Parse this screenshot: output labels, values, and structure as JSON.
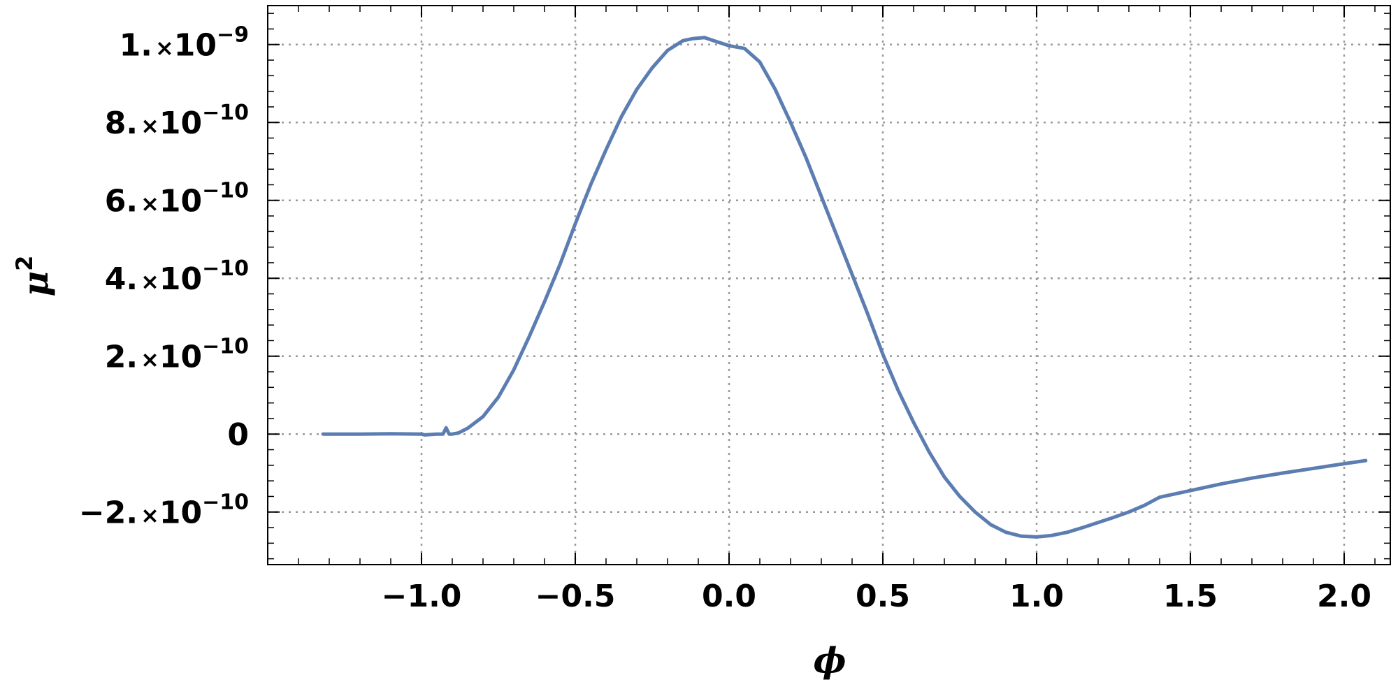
{
  "chart_data": {
    "type": "line",
    "xlabel": "ϕ",
    "ylabel": "μ",
    "ylabel_superscript": "2",
    "xlim": [
      -1.5,
      2.15
    ],
    "ylim": [
      -3.35e-10,
      1.1e-09
    ],
    "grid": true,
    "grid_style": "dotted",
    "x_ticks": [
      {
        "value": -1.0,
        "label": "−1.0"
      },
      {
        "value": -0.5,
        "label": "−0.5"
      },
      {
        "value": 0.0,
        "label": "0.0"
      },
      {
        "value": 0.5,
        "label": "0.5"
      },
      {
        "value": 1.0,
        "label": "1.0"
      },
      {
        "value": 1.5,
        "label": "1.5"
      },
      {
        "value": 2.0,
        "label": "2.0"
      }
    ],
    "y_ticks": [
      {
        "value": 1e-09,
        "mantissa": "1.",
        "times": "×",
        "base": "10",
        "exponent": "−9"
      },
      {
        "value": 8e-10,
        "mantissa": "8.",
        "times": "×",
        "base": "10",
        "exponent": "−10"
      },
      {
        "value": 6e-10,
        "mantissa": "6.",
        "times": "×",
        "base": "10",
        "exponent": "−10"
      },
      {
        "value": 4e-10,
        "mantissa": "4.",
        "times": "×",
        "base": "10",
        "exponent": "−10"
      },
      {
        "value": 2e-10,
        "mantissa": "2.",
        "times": "×",
        "base": "10",
        "exponent": "−10"
      },
      {
        "value": 0,
        "mantissa": "0",
        "times": "",
        "base": "",
        "exponent": ""
      },
      {
        "value": -2e-10,
        "mantissa": "−2.",
        "times": "×",
        "base": "10",
        "exponent": "−10"
      }
    ],
    "x_minor_step": 0.1,
    "y_minor_step": 4e-11,
    "series": [
      {
        "color": "#5b7db1",
        "x": [
          -1.32,
          -1.2,
          -1.1,
          -1.0,
          -0.99,
          -0.95,
          -0.93,
          -0.92,
          -0.91,
          -0.9,
          -0.88,
          -0.85,
          -0.8,
          -0.75,
          -0.7,
          -0.65,
          -0.6,
          -0.55,
          -0.5,
          -0.45,
          -0.4,
          -0.35,
          -0.3,
          -0.25,
          -0.2,
          -0.15,
          -0.12,
          -0.08,
          -0.05,
          0.0,
          0.05,
          0.1,
          0.15,
          0.2,
          0.25,
          0.3,
          0.35,
          0.4,
          0.45,
          0.5,
          0.55,
          0.6,
          0.65,
          0.7,
          0.75,
          0.8,
          0.85,
          0.9,
          0.95,
          1.0,
          1.05,
          1.1,
          1.15,
          1.2,
          1.25,
          1.3,
          1.35,
          1.4,
          1.5,
          1.6,
          1.7,
          1.8,
          1.9,
          2.0,
          2.07
        ],
        "y": [
          0,
          0,
          1e-12,
          0,
          -2e-12,
          0,
          0,
          1.6e-11,
          0,
          0,
          3e-12,
          1.5e-11,
          4.5e-11,
          9.5e-11,
          1.65e-10,
          2.5e-10,
          3.4e-10,
          4.35e-10,
          5.4e-10,
          6.4e-10,
          7.3e-10,
          8.15e-10,
          8.85e-10,
          9.4e-10,
          9.85e-10,
          1.01e-09,
          1.015e-09,
          1.018e-09,
          1.01e-09,
          9.97e-10,
          9.9e-10,
          9.55e-10,
          8.85e-10,
          8e-10,
          7.1e-10,
          6.1e-10,
          5.1e-10,
          4.1e-10,
          3.1e-10,
          2.05e-10,
          1.12e-10,
          3e-11,
          -4.5e-11,
          -1.1e-10,
          -1.6e-10,
          -2e-10,
          -2.32e-10,
          -2.52e-10,
          -2.62e-10,
          -2.64e-10,
          -2.6e-10,
          -2.52e-10,
          -2.4e-10,
          -2.27e-10,
          -2.14e-10,
          -2e-10,
          -1.83e-10,
          -1.62e-10,
          -1.45e-10,
          -1.28e-10,
          -1.13e-10,
          -1e-10,
          -8.8e-11,
          -7.6e-11,
          -6.8e-11
        ]
      }
    ]
  }
}
